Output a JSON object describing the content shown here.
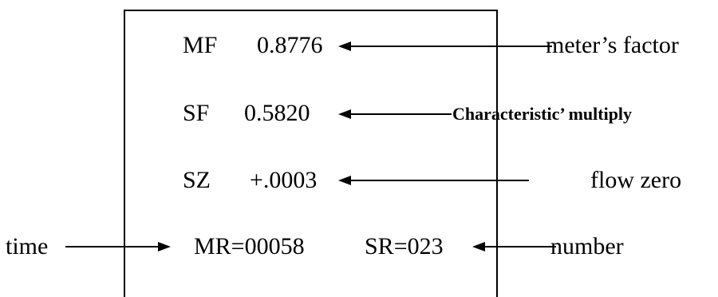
{
  "display": {
    "rows": [
      {
        "code": "MF",
        "value": "0.8776"
      },
      {
        "code": "SF",
        "value": "0.5820"
      },
      {
        "code": "SZ",
        "value": "+.0003"
      }
    ],
    "bottom_left": "MR=00058",
    "bottom_right": "SR=023"
  },
  "labels": {
    "meter_factor": "meter’s factor",
    "characteristic_multiply": "Characteristic’ multiply",
    "flow_zero": "flow zero",
    "time": "time",
    "number": "number"
  }
}
